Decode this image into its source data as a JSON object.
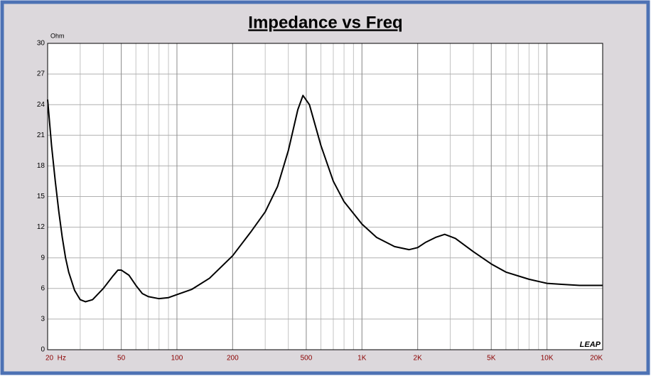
{
  "chart_data": {
    "type": "line",
    "title": "Impedance vs Freq",
    "y_label": "Ohm",
    "watermark": "LEAP",
    "x": [
      20,
      21,
      22,
      23,
      24,
      25,
      26,
      28,
      30,
      32,
      35,
      40,
      45,
      48,
      50,
      55,
      60,
      65,
      70,
      80,
      90,
      100,
      120,
      150,
      200,
      250,
      300,
      350,
      400,
      450,
      480,
      520,
      600,
      700,
      800,
      1000,
      1200,
      1500,
      1800,
      2000,
      2200,
      2500,
      2800,
      3200,
      4000,
      5000,
      6000,
      8000,
      10000,
      12000,
      15000,
      20000
    ],
    "values": [
      24.5,
      20,
      16.5,
      13.5,
      11,
      9.0,
      7.6,
      5.8,
      4.9,
      4.7,
      4.9,
      6.0,
      7.2,
      7.8,
      7.8,
      7.3,
      6.3,
      5.5,
      5.2,
      5.0,
      5.1,
      5.4,
      5.9,
      7.0,
      9.2,
      11.5,
      13.5,
      16.0,
      19.5,
      23.5,
      24.9,
      24.0,
      20.0,
      16.5,
      14.5,
      12.3,
      11.0,
      10.1,
      9.8,
      10.0,
      10.5,
      11.0,
      11.3,
      10.9,
      9.6,
      8.4,
      7.6,
      6.9,
      6.5,
      6.4,
      6.3,
      6.3
    ],
    "color": "#000000",
    "log_x": true,
    "grid": true,
    "xlim": [
      20,
      20000
    ],
    "xticks": [
      {
        "value": 20,
        "label": "20  Hz"
      },
      50,
      100,
      200,
      500,
      {
        "value": 1000,
        "label": "1K"
      },
      {
        "value": 2000,
        "label": "2K"
      },
      {
        "value": 5000,
        "label": "5K"
      },
      {
        "value": 10000,
        "label": "10K"
      },
      {
        "value": 20000,
        "label": "20K"
      }
    ],
    "ylim": [
      0,
      30
    ],
    "yticks": [
      0,
      3,
      6,
      9,
      12,
      15,
      18,
      21,
      24,
      27,
      30
    ]
  }
}
